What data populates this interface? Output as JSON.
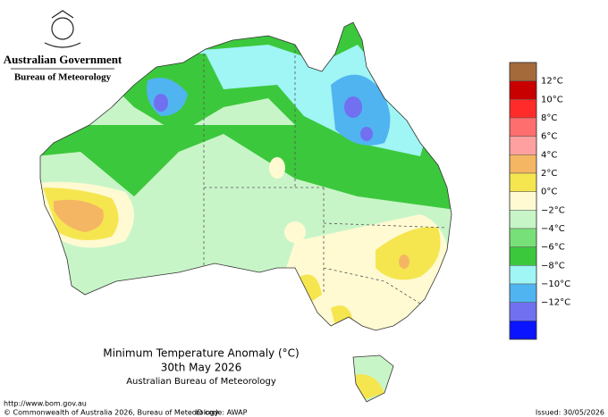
{
  "header": {
    "government": "Australian Government",
    "agency": "Bureau of Meteorology"
  },
  "title": {
    "line1": "Minimum Temperature Anomaly (°C)",
    "line2": "30th May 2026",
    "line3": "Australian Bureau of Meteorology"
  },
  "legend": {
    "colors": [
      "#a56a3a",
      "#c80000",
      "#ff2a2a",
      "#ff6e6e",
      "#ffa0a0",
      "#f5b664",
      "#f5e650",
      "#fffad2",
      "#c8f5c8",
      "#78e078",
      "#3cc83c",
      "#a0f5f5",
      "#50b4f0",
      "#7070f0",
      "#0a14ff"
    ],
    "labels": [
      "12°C",
      "10°C",
      "8°C",
      "6°C",
      "4°C",
      "2°C",
      "0°C",
      "−2°C",
      "−4°C",
      "−6°C",
      "−8°C",
      "−10°C",
      "−12°C"
    ]
  },
  "footer": {
    "url": "http://www.bom.gov.au",
    "copyright": "© Commonwealth of Australia 2026, Bureau of Meteorology",
    "id_code": "ID code: AWAP",
    "issued": "Issued: 30/05/2026"
  }
}
